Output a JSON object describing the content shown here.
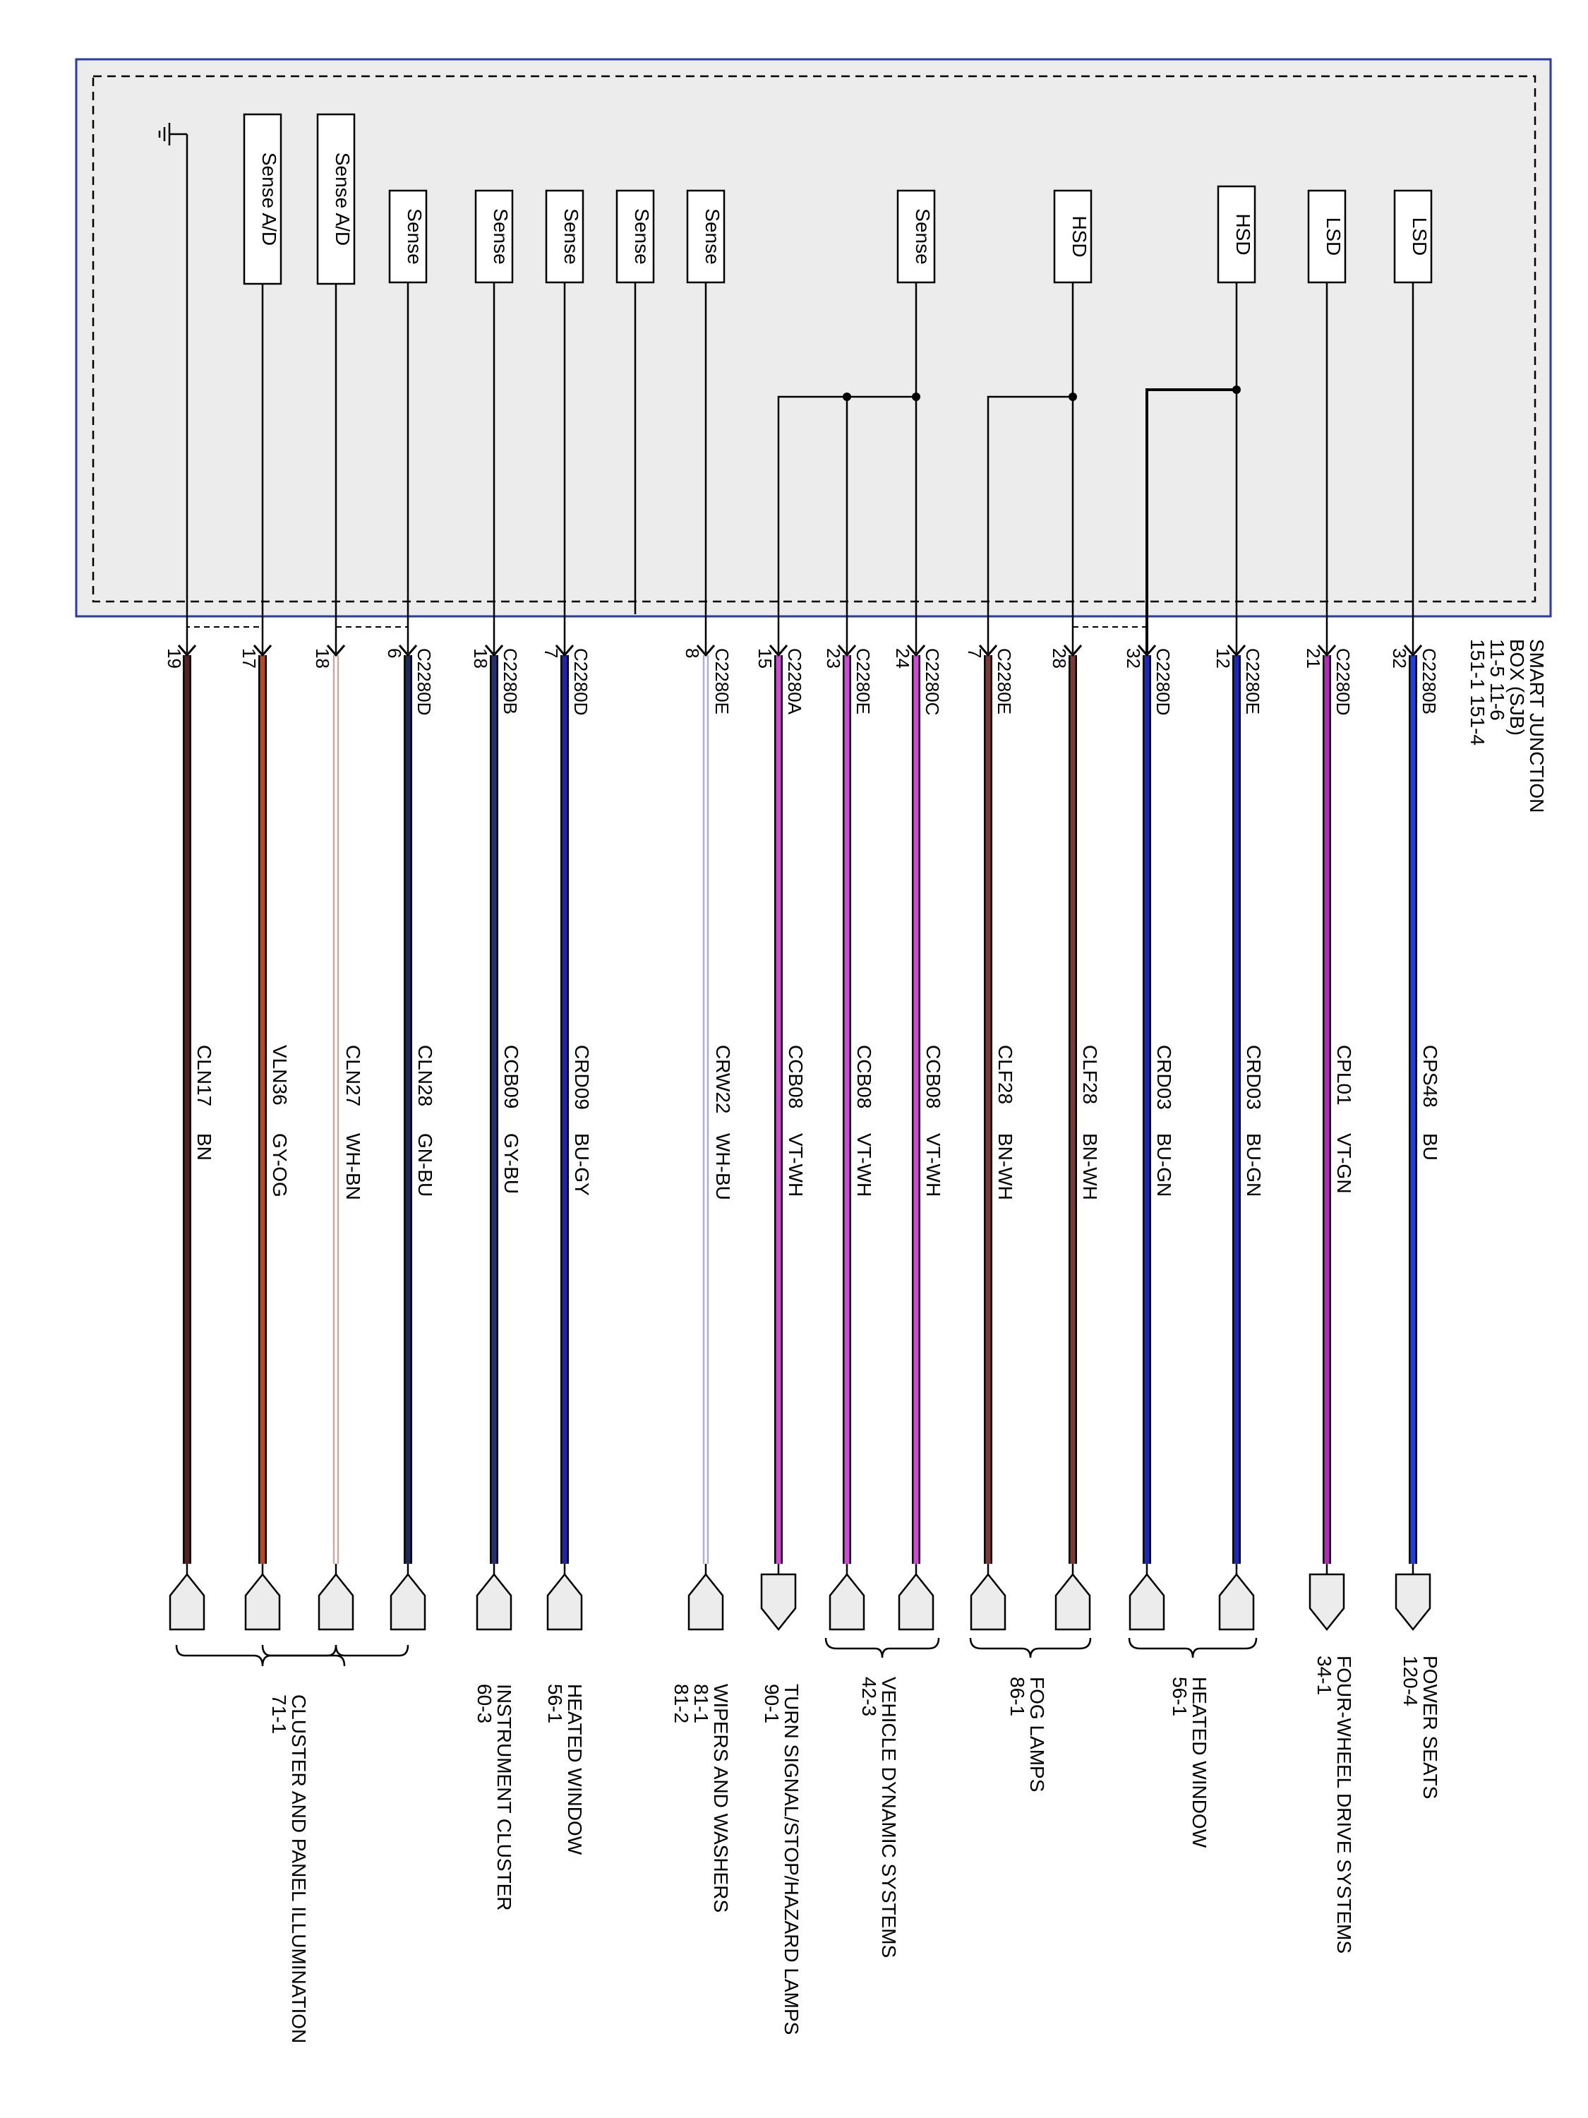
{
  "header": {
    "title_line1": "SMART JUNCTION",
    "title_line2": "BOX (SJB)",
    "refs_line1": "11-5      11-6",
    "refs_line2": "151-1      151-4"
  },
  "colors": {
    "BN": "#5a1f1f",
    "GY-OG": "#b54a2a",
    "WH-BN": "#c9aaa0",
    "GN-BU": "#1b2b55",
    "GY-BU": "#27306e",
    "BU-GY": "#2424a8",
    "WH-BU": "#aab0d8",
    "VT-WH": "#d04ad8",
    "BN-WH": "#7a3a36",
    "BU-GN": "#1c28b8",
    "VT-GN": "#b22cb8",
    "BU": "#1f3fe0",
    "box_border": "#2a3aa8",
    "box_fill": "#ececec"
  },
  "modules": [
    {
      "label": "Sense A/D"
    },
    {
      "label": "Sense A/D"
    },
    {
      "label": "Sense"
    },
    {
      "label": "Sense"
    },
    {
      "label": "Sense"
    },
    {
      "label": "Sense"
    },
    {
      "label": "Sense"
    },
    {
      "label": "Sense"
    },
    {
      "label": "HSD"
    },
    {
      "label": "HSD"
    },
    {
      "label": "LSD"
    },
    {
      "label": "LSD"
    }
  ],
  "wires": [
    {
      "pin": "19",
      "connector": "",
      "circuit": "CLN17",
      "color": "BN"
    },
    {
      "pin": "17",
      "connector": "",
      "circuit": "VLN36",
      "color": "GY-OG"
    },
    {
      "pin": "18",
      "connector": "",
      "circuit": "CLN27",
      "color": "WH-BN"
    },
    {
      "pin": "6",
      "connector": "C2280D",
      "circuit": "CLN28",
      "color": "GN-BU"
    },
    {
      "pin": "18",
      "connector": "C2280B",
      "circuit": "CCB09",
      "color": "GY-BU"
    },
    {
      "pin": "7",
      "connector": "C2280D",
      "circuit": "CRD09",
      "color": "BU-GY"
    },
    {
      "pin": "8",
      "connector": "C2280E",
      "circuit": "CRW22",
      "color": "WH-BU"
    },
    {
      "pin": "15",
      "connector": "C2280A",
      "circuit": "CCB08",
      "color": "VT-WH"
    },
    {
      "pin": "23",
      "connector": "C2280E",
      "circuit": "CCB08",
      "color": "VT-WH"
    },
    {
      "pin": "24",
      "connector": "C2280C",
      "circuit": "CCB08",
      "color": "VT-WH"
    },
    {
      "pin": "7",
      "connector": "C2280E",
      "circuit": "CLF28",
      "color": "BN-WH"
    },
    {
      "pin": "28",
      "connector": "",
      "circuit": "CLF28",
      "color": "BN-WH"
    },
    {
      "pin": "32",
      "connector": "C2280D",
      "circuit": "CRD03",
      "color": "BU-GN"
    },
    {
      "pin": "12",
      "connector": "C2280E",
      "circuit": "CRD03",
      "color": "BU-GN"
    },
    {
      "pin": "21",
      "connector": "C2280D",
      "circuit": "CPL01",
      "color": "VT-GN"
    },
    {
      "pin": "32",
      "connector": "C2280B",
      "circuit": "CPS48",
      "color": "BU"
    }
  ],
  "destinations": [
    {
      "name": "CLUSTER AND PANEL ILLUMINATION",
      "ref": "71-1",
      "ref2": ""
    },
    {
      "name": "INSTRUMENT CLUSTER",
      "ref": "60-3",
      "ref2": ""
    },
    {
      "name": "HEATED WINDOW",
      "ref": "56-1",
      "ref2": ""
    },
    {
      "name": "WIPERS AND WASHERS",
      "ref": "81-1",
      "ref2": "81-2"
    },
    {
      "name": "TURN SIGNAL/STOP/HAZARD LAMPS",
      "ref": "90-1",
      "ref2": ""
    },
    {
      "name": "VEHICLE DYNAMIC SYSTEMS",
      "ref": "42-3",
      "ref2": ""
    },
    {
      "name": "FOG LAMPS",
      "ref": "86-1",
      "ref2": ""
    },
    {
      "name": "HEATED WINDOW",
      "ref": "56-1",
      "ref2": ""
    },
    {
      "name": "FOUR-WHEEL DRIVE SYSTEMS",
      "ref": "34-1",
      "ref2": ""
    },
    {
      "name": "POWER SEATS",
      "ref": "120-4",
      "ref2": ""
    }
  ]
}
